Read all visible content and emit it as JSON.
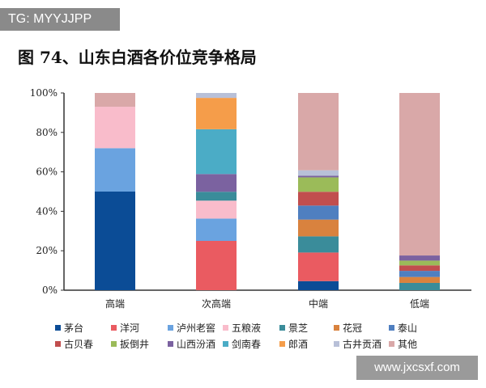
{
  "watermark_top": "TG: MYYJJPP",
  "watermark_bottom": "www.jxcsxf.com",
  "chart_data": {
    "type": "bar",
    "stacked": true,
    "title": "图 74、山东白酒各价位竞争格局",
    "categories": [
      "高端",
      "次高端",
      "中端",
      "低端"
    ],
    "ylim": [
      0,
      100
    ],
    "yticks": [
      "0%",
      "20%",
      "40%",
      "60%",
      "80%",
      "100%"
    ],
    "grid": false,
    "legend_position": "bottom",
    "series": [
      {
        "name": "茅台",
        "color": "#0b4c96",
        "values": [
          50,
          0,
          4.6,
          0
        ]
      },
      {
        "name": "洋河",
        "color": "#ea5b61",
        "values": [
          0,
          25,
          14.5,
          0
        ]
      },
      {
        "name": "泸州老窖",
        "color": "#6aa3e0",
        "values": [
          22,
          11.3,
          0,
          0
        ]
      },
      {
        "name": "五粮液",
        "color": "#f9bccb",
        "values": [
          21,
          9.1,
          0,
          0
        ]
      },
      {
        "name": "景芝",
        "color": "#3a8c9a",
        "values": [
          0,
          4.5,
          8.2,
          3.7
        ]
      },
      {
        "name": "花冠",
        "color": "#d9823e",
        "values": [
          0,
          0,
          8.5,
          3.0
        ]
      },
      {
        "name": "泰山",
        "color": "#4f7fc0",
        "values": [
          0,
          0,
          7.1,
          3.1
        ]
      },
      {
        "name": "古贝春",
        "color": "#c14e4e",
        "values": [
          0,
          0,
          7.0,
          2.8
        ]
      },
      {
        "name": "扳倒井",
        "color": "#9bbb59",
        "values": [
          0,
          0,
          7.3,
          2.4
        ]
      },
      {
        "name": "山西汾酒",
        "color": "#7b62a0",
        "values": [
          0,
          9.0,
          0.8,
          2.6
        ]
      },
      {
        "name": "剑南春",
        "color": "#4bacc6",
        "values": [
          0,
          22.7,
          0,
          0
        ]
      },
      {
        "name": "郎酒",
        "color": "#f59d4a",
        "values": [
          0,
          15.9,
          0,
          0
        ]
      },
      {
        "name": "古井贡酒",
        "color": "#b8c0d8",
        "values": [
          0,
          2.5,
          2.8,
          0
        ]
      },
      {
        "name": "其他",
        "color": "#d9a8a8",
        "values": [
          7,
          0,
          39.2,
          82.4
        ]
      }
    ]
  }
}
